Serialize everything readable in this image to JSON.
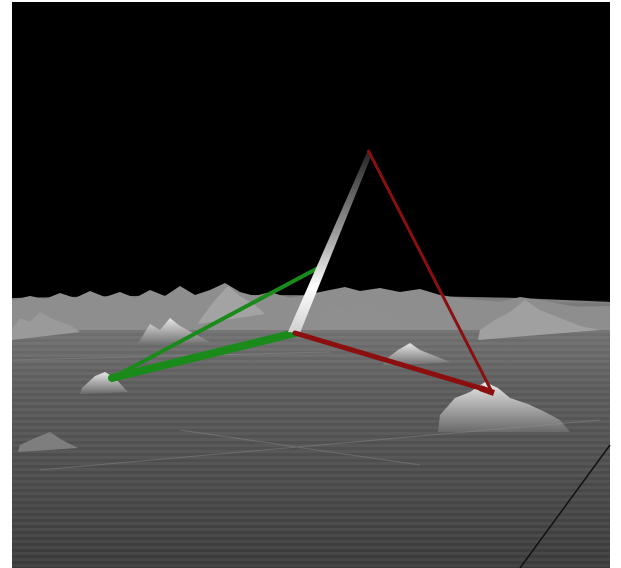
{
  "viewport": {
    "background": "#000000",
    "frame_color": "#ffffff",
    "terrain_color": "#8a8a8a",
    "terrain_shadow": "#3c3c3c"
  },
  "markers": [
    {
      "name": "marker-green-upper",
      "color": "#1a8a1a"
    },
    {
      "name": "marker-green-lower",
      "color": "#1a8a1a"
    },
    {
      "name": "marker-red-right",
      "color": "#8b0f0f"
    },
    {
      "name": "marker-red-top",
      "color": "#8b0f0f"
    },
    {
      "name": "marker-white-spike",
      "color": "#ffffff"
    }
  ]
}
